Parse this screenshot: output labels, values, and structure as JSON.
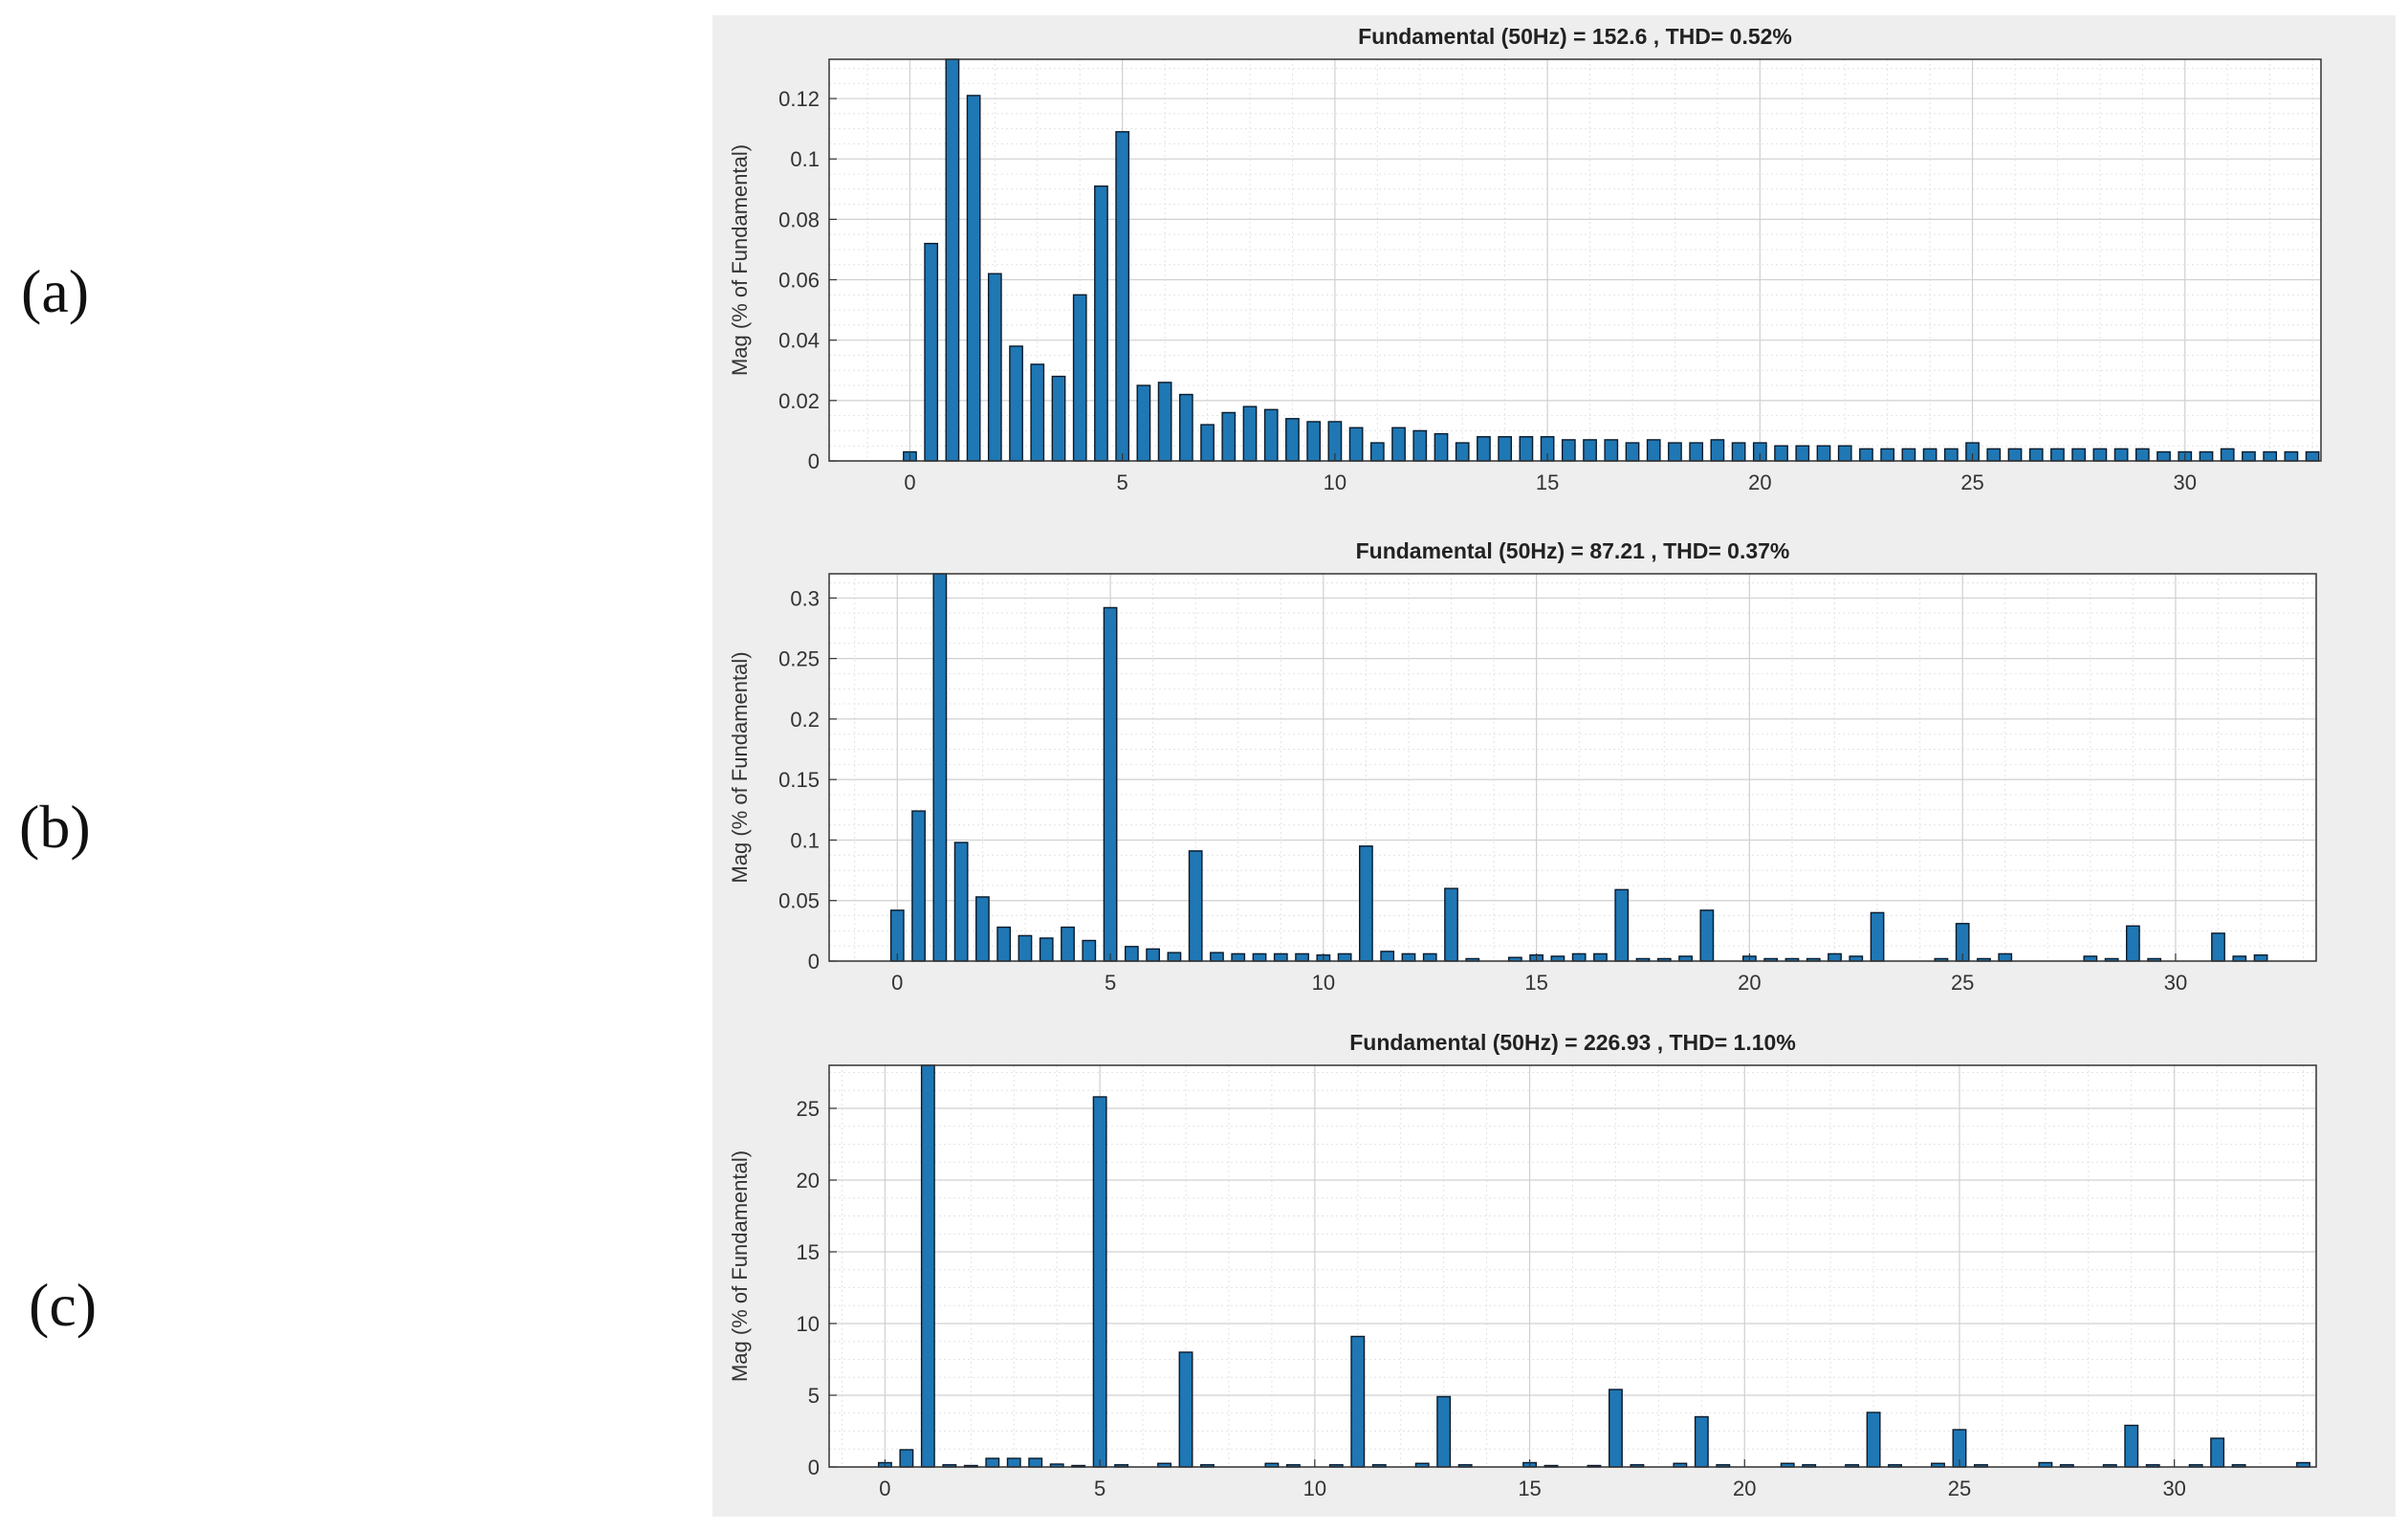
{
  "panel_labels": [
    "(a)",
    "(b)",
    "(c)"
  ],
  "colors": {
    "bar": "#1f77b4",
    "bar_edge": "#0a1a2a",
    "axes_bg": "#ffffff",
    "figure_bg": "#eeeeee",
    "grid": "#d0d0d0"
  },
  "chart_data": [
    {
      "type": "bar",
      "title": "Fundamental (50Hz) = 152.6 , THD= 0.52%",
      "xlabel": "",
      "ylabel": "Mag (% of Fundamental)",
      "xlim": [
        -1.9,
        33.2
      ],
      "ylim": [
        0,
        0.133
      ],
      "xticks": [
        0,
        5,
        10,
        15,
        20,
        25,
        30
      ],
      "yticks": [
        0,
        0.02,
        0.04,
        0.06,
        0.08,
        0.1,
        0.12
      ],
      "grid": true,
      "x": [
        0,
        0.5,
        1,
        1.5,
        2,
        2.5,
        3,
        3.5,
        4,
        4.5,
        5,
        5.5,
        6,
        6.5,
        7,
        7.5,
        8,
        8.5,
        9,
        9.5,
        10,
        10.5,
        11,
        11.5,
        12,
        12.5,
        13,
        13.5,
        14,
        14.5,
        15,
        15.5,
        16,
        16.5,
        17,
        17.5,
        18,
        18.5,
        19,
        19.5,
        20,
        20.5,
        21,
        21.5,
        22,
        22.5,
        23,
        23.5,
        24,
        24.5,
        25,
        25.5,
        26,
        26.5,
        27,
        27.5,
        28,
        28.5,
        29,
        29.5,
        30,
        30.5,
        31,
        31.5,
        32,
        32.5,
        33
      ],
      "values": [
        0.003,
        0.072,
        0.133,
        0.121,
        0.062,
        0.038,
        0.032,
        0.028,
        0.055,
        0.091,
        0.109,
        0.025,
        0.026,
        0.022,
        0.012,
        0.016,
        0.018,
        0.017,
        0.014,
        0.013,
        0.013,
        0.011,
        0.006,
        0.011,
        0.01,
        0.009,
        0.006,
        0.008,
        0.008,
        0.008,
        0.008,
        0.007,
        0.007,
        0.007,
        0.006,
        0.007,
        0.006,
        0.006,
        0.007,
        0.006,
        0.006,
        0.005,
        0.005,
        0.005,
        0.005,
        0.004,
        0.004,
        0.004,
        0.004,
        0.004,
        0.006,
        0.004,
        0.004,
        0.004,
        0.004,
        0.004,
        0.004,
        0.004,
        0.004,
        0.003,
        0.003,
        0.003,
        0.004,
        0.003,
        0.003,
        0.003,
        0.003
      ]
    },
    {
      "type": "bar",
      "title": "Fundamental (50Hz) = 87.21 , THD= 0.37%",
      "xlabel": "",
      "ylabel": "Mag (% of Fundamental)",
      "xlim": [
        -1.6,
        33.3
      ],
      "ylim": [
        0,
        0.32
      ],
      "xticks": [
        0,
        5,
        10,
        15,
        20,
        25,
        30
      ],
      "yticks": [
        0,
        0.05,
        0.1,
        0.15,
        0.2,
        0.25,
        0.3
      ],
      "grid": true,
      "x": [
        0,
        0.5,
        1,
        1.5,
        2,
        2.5,
        3,
        3.5,
        4,
        4.5,
        5,
        5.5,
        6,
        6.5,
        7,
        7.5,
        8,
        8.5,
        9,
        9.5,
        10,
        10.5,
        11,
        11.5,
        12,
        12.5,
        13,
        13.5,
        14.5,
        15,
        15.5,
        16,
        16.5,
        17,
        17.5,
        18,
        18.5,
        19,
        20,
        20.5,
        21,
        21.5,
        22,
        22.5,
        23,
        24.5,
        25,
        25.5,
        26,
        28,
        28.5,
        29,
        29.5,
        31,
        31.5,
        32
      ],
      "values": [
        0.042,
        0.124,
        0.32,
        0.098,
        0.053,
        0.028,
        0.021,
        0.019,
        0.028,
        0.017,
        0.292,
        0.012,
        0.01,
        0.007,
        0.091,
        0.007,
        0.006,
        0.006,
        0.006,
        0.006,
        0.005,
        0.006,
        0.095,
        0.008,
        0.006,
        0.006,
        0.06,
        0.002,
        0.003,
        0.005,
        0.004,
        0.006,
        0.006,
        0.059,
        0.002,
        0.002,
        0.004,
        0.042,
        0.004,
        0.002,
        0.002,
        0.002,
        0.006,
        0.004,
        0.04,
        0.002,
        0.031,
        0.002,
        0.006,
        0.004,
        0.002,
        0.029,
        0.002,
        0.023,
        0.004,
        0.005
      ]
    },
    {
      "type": "bar",
      "title": "Fundamental (50Hz) = 226.93 , THD= 1.10%",
      "xlabel": "",
      "ylabel": "Mag (% of Fundamental)",
      "xlim": [
        -1.3,
        33.3
      ],
      "ylim": [
        0,
        28
      ],
      "xticks": [
        0,
        5,
        10,
        15,
        20,
        25,
        30
      ],
      "yticks": [
        0,
        5,
        10,
        15,
        20,
        25
      ],
      "grid": true,
      "x": [
        0,
        0.5,
        1,
        1.5,
        2,
        2.5,
        3,
        3.5,
        4,
        4.5,
        5,
        5.5,
        6.5,
        7,
        7.5,
        9,
        9.5,
        10.5,
        11,
        11.5,
        12.5,
        13,
        13.5,
        15,
        15.5,
        16.5,
        17,
        17.5,
        18.5,
        19,
        19.5,
        21,
        21.5,
        22.5,
        23,
        23.5,
        24.5,
        25,
        25.5,
        27,
        27.5,
        28.5,
        29,
        29.5,
        30.5,
        31,
        31.5,
        33
      ],
      "values": [
        0.3,
        1.2,
        28,
        0.15,
        0.1,
        0.6,
        0.6,
        0.6,
        0.2,
        0.1,
        25.8,
        0.15,
        0.25,
        8,
        0.15,
        0.25,
        0.15,
        0.15,
        9.1,
        0.15,
        0.25,
        4.9,
        0.15,
        0.3,
        0.1,
        0.1,
        5.4,
        0.15,
        0.25,
        3.5,
        0.15,
        0.25,
        0.15,
        0.15,
        3.8,
        0.15,
        0.25,
        2.6,
        0.15,
        0.3,
        0.15,
        0.15,
        2.9,
        0.15,
        0.15,
        2,
        0.15,
        0.3
      ]
    }
  ]
}
